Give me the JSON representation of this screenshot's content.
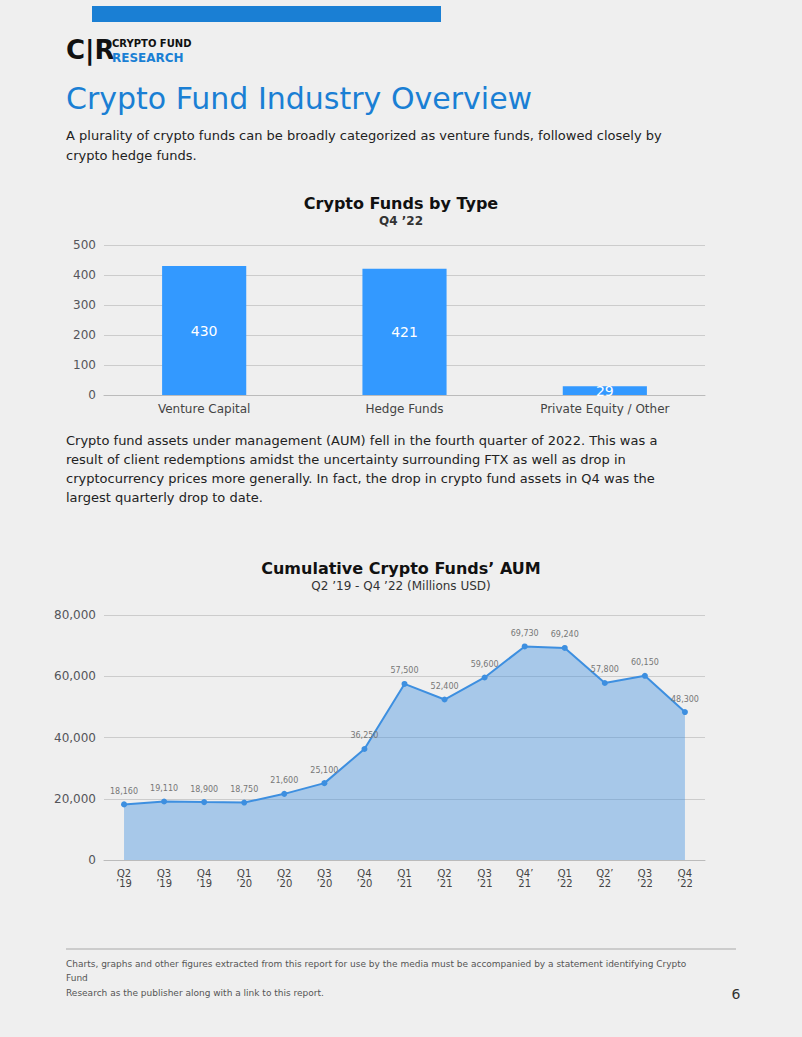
{
  "title": "Crypto Fund Industry Overview",
  "subtitle": "A plurality of crypto funds can be broadly categorized as venture funds, followed closely by\ncrypto hedge funds.",
  "annotations": [
    "C|R",
    "CRYPTO FUND",
    "RESEARCH",
    "Crypto fund assets under management (AUM) fell in the fourth quarter of 2022. This was a\nresult of client redemptions amidst the uncertainty surrounding FTX as well as drop in\ncryptocurrency prices more generally. In fact, the drop in crypto fund assets in Q4 was the\nlargest quarterly drop to date.",
    "Charts, graphs and other figures extracted from this report for use by the media must be accompanied by a statement identifying Crypto Fund\nResearch as the publisher along with a link to this report.",
    "6"
  ],
  "chart_data": [
    {
      "type": "bar",
      "title": "Crypto Funds by Type",
      "subtitle": "Q4 ’22",
      "categories": [
        "Venture Capital",
        "Hedge Funds",
        "Private Equity / Other"
      ],
      "values": [
        430,
        421,
        29
      ],
      "color": "#3399ff",
      "ylim": [
        0,
        500
      ],
      "yticks": [
        0,
        100,
        200,
        300,
        400,
        500
      ],
      "grid": true,
      "data_labels": true
    },
    {
      "type": "area",
      "title": "Cumulative Crypto Funds’ AUM",
      "subtitle": "Q2 ’19 - Q4 ’22 (Millions USD)",
      "categories": [
        "Q2\n’19",
        "Q3\n’19",
        "Q4\n’19",
        "Q1\n’20",
        "Q2\n’20",
        "Q3\n’20",
        "Q4\n’20",
        "Q1\n’21",
        "Q2\n’21",
        "Q3\n’21",
        "Q4’\n21",
        "Q1\n’22",
        "Q2’\n22",
        "Q3\n’22",
        "Q4\n’22"
      ],
      "values": [
        18160,
        19110,
        18900,
        18750,
        21600,
        25100,
        36250,
        57500,
        52400,
        59600,
        69730,
        69240,
        57800,
        60150,
        48300
      ],
      "value_labels": [
        "18,160",
        "19,110",
        "18,900",
        "18,750",
        "21,600",
        "25,100",
        "36,250",
        "57,500",
        "52,400",
        "59,600",
        "69,730",
        "69,240",
        "57,800",
        "60,150",
        "48,300"
      ],
      "color": "#3d8fe0",
      "marker": "circle",
      "ylim": [
        0,
        80000
      ],
      "yticks": [
        0,
        {
          "value": 20000,
          "label": "20,000"
        },
        {
          "value": 40000,
          "label": "40,000"
        },
        {
          "value": 60000,
          "label": "60,000"
        },
        {
          "value": 80000,
          "label": "80,000"
        }
      ],
      "grid": true,
      "data_labels": true
    }
  ]
}
